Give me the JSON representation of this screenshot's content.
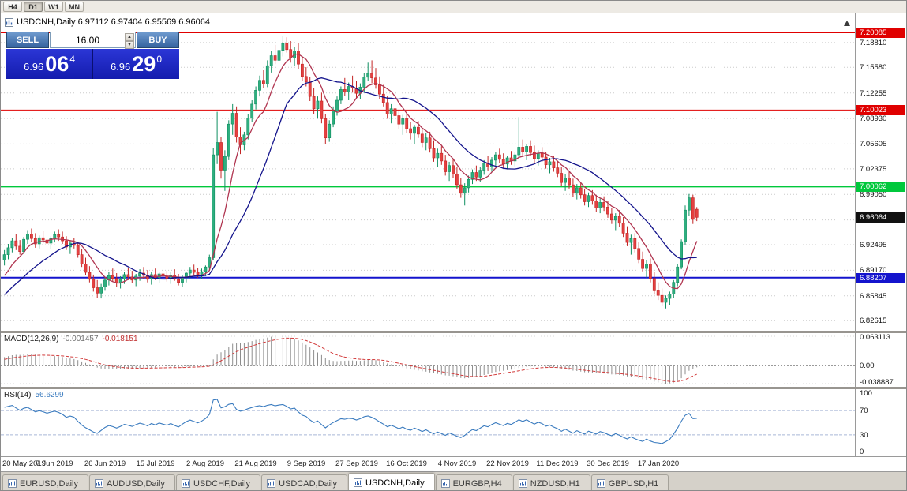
{
  "toolbar": {
    "timeframes": [
      {
        "label": "H4",
        "active": false
      },
      {
        "label": "D1",
        "active": true
      },
      {
        "label": "W1",
        "active": false
      },
      {
        "label": "MN",
        "active": false
      }
    ]
  },
  "chart_header": {
    "title": "USDCNH,Daily 6.97112 6.97404 6.95569 6.96064"
  },
  "trade_panel": {
    "sell_label": "SELL",
    "buy_label": "BUY",
    "volume": "16.00",
    "sell_price": {
      "base": "6.96",
      "pips": "06",
      "point": "4"
    },
    "buy_price": {
      "base": "6.96",
      "pips": "29",
      "point": "0"
    }
  },
  "chart_data": {
    "type": "candlestick",
    "symbol": "USDCNH",
    "period": "Daily",
    "ohlc": {
      "open": "6.97112",
      "high": "6.97404",
      "low": "6.95569",
      "close": "6.96064"
    },
    "current_price": "6.96064",
    "y_axis": {
      "min": 6.813,
      "max": 7.226,
      "ticks": [
        "7.18810",
        "7.15580",
        "7.12255",
        "7.08930",
        "7.05605",
        "7.02375",
        "6.99050",
        "6.95725",
        "6.92495",
        "6.89170",
        "6.85845",
        "6.82615"
      ]
    },
    "x_axis": {
      "labels": [
        "20 May 2019",
        "7 Jun 2019",
        "26 Jun 2019",
        "15 Jul 2019",
        "2 Aug 2019",
        "21 Aug 2019",
        "9 Sep 2019",
        "27 Sep 2019",
        "16 Oct 2019",
        "4 Nov 2019",
        "22 Nov 2019",
        "11 Dec 2019",
        "30 Dec 2019",
        "17 Jan 2020"
      ],
      "label_bar_indexes": [
        0,
        13,
        26,
        39,
        52,
        65,
        78,
        91,
        104,
        117,
        130,
        143,
        156,
        169
      ]
    },
    "hlines": [
      {
        "price": 7.20085,
        "label": "7.20085",
        "color": "#e00000",
        "width": 1
      },
      {
        "price": 7.10023,
        "label": "7.10023",
        "color": "#e00000",
        "width": 1
      },
      {
        "price": 7.00062,
        "label": "7.00062",
        "color": "#00c83c",
        "width": 2
      },
      {
        "price": 6.88207,
        "label": "6.88207",
        "color": "#1414cd",
        "width": 2
      }
    ],
    "colors": {
      "bull": "#2fae7f",
      "bull_border": "#0f8f61",
      "bear": "#e44141",
      "bear_border": "#c32424",
      "grid": "#cccccc",
      "current_badge": "#111111"
    },
    "moving_averages": [
      {
        "period": 8,
        "color": "#b03550"
      },
      {
        "period": 20,
        "color": "#14148c"
      }
    ],
    "seed_closes": [
      6.82,
      6.829,
      6.824,
      6.835,
      6.83,
      6.842,
      6.837,
      6.85,
      6.844,
      6.856,
      6.85,
      6.864,
      6.858,
      6.872,
      6.866,
      6.88,
      6.874,
      6.89,
      6.885,
      6.9
    ],
    "candles": [
      [
        6.905,
        6.918,
        6.898,
        6.912
      ],
      [
        6.912,
        6.926,
        6.906,
        6.921
      ],
      [
        6.921,
        6.934,
        6.915,
        6.93
      ],
      [
        6.93,
        6.939,
        6.918,
        6.923
      ],
      [
        6.923,
        6.931,
        6.912,
        6.916
      ],
      [
        6.916,
        6.935,
        6.913,
        6.932
      ],
      [
        6.932,
        6.944,
        6.926,
        6.939
      ],
      [
        6.939,
        6.946,
        6.929,
        6.933
      ],
      [
        6.933,
        6.94,
        6.921,
        6.926
      ],
      [
        6.926,
        6.937,
        6.92,
        6.934
      ],
      [
        6.934,
        6.943,
        6.927,
        6.931
      ],
      [
        6.931,
        6.938,
        6.922,
        6.927
      ],
      [
        6.927,
        6.936,
        6.919,
        6.933
      ],
      [
        6.933,
        6.942,
        6.928,
        6.938
      ],
      [
        6.938,
        6.945,
        6.93,
        6.935
      ],
      [
        6.935,
        6.942,
        6.926,
        6.93
      ],
      [
        6.93,
        6.936,
        6.918,
        6.922
      ],
      [
        6.922,
        6.93,
        6.913,
        6.927
      ],
      [
        6.927,
        6.934,
        6.92,
        6.924
      ],
      [
        6.924,
        6.929,
        6.908,
        6.912
      ],
      [
        6.912,
        6.919,
        6.896,
        6.9
      ],
      [
        6.9,
        6.908,
        6.885,
        6.889
      ],
      [
        6.889,
        6.897,
        6.876,
        6.88
      ],
      [
        6.88,
        6.886,
        6.864,
        6.869
      ],
      [
        6.869,
        6.879,
        6.856,
        6.862
      ],
      [
        6.862,
        6.874,
        6.855,
        6.87
      ],
      [
        6.87,
        6.883,
        6.865,
        6.879
      ],
      [
        6.879,
        6.89,
        6.872,
        6.885
      ],
      [
        6.885,
        6.894,
        6.877,
        6.881
      ],
      [
        6.881,
        6.888,
        6.87,
        6.875
      ],
      [
        6.875,
        6.884,
        6.868,
        6.88
      ],
      [
        6.88,
        6.89,
        6.874,
        6.886
      ],
      [
        6.886,
        6.895,
        6.879,
        6.883
      ],
      [
        6.883,
        6.891,
        6.875,
        6.879
      ],
      [
        6.879,
        6.887,
        6.871,
        6.884
      ],
      [
        6.884,
        6.893,
        6.878,
        6.888
      ],
      [
        6.888,
        6.896,
        6.88,
        6.885
      ],
      [
        6.885,
        6.892,
        6.876,
        6.88
      ],
      [
        6.88,
        6.889,
        6.873,
        6.886
      ],
      [
        6.886,
        6.894,
        6.879,
        6.882
      ],
      [
        6.882,
        6.89,
        6.875,
        6.887
      ],
      [
        6.887,
        6.895,
        6.88,
        6.884
      ],
      [
        6.884,
        6.891,
        6.877,
        6.881
      ],
      [
        6.881,
        6.889,
        6.874,
        6.885
      ],
      [
        6.885,
        6.893,
        6.878,
        6.88
      ],
      [
        6.88,
        6.887,
        6.872,
        6.876
      ],
      [
        6.876,
        6.885,
        6.87,
        6.882
      ],
      [
        6.882,
        6.89,
        6.876,
        6.888
      ],
      [
        6.888,
        6.896,
        6.881,
        6.892
      ],
      [
        6.892,
        6.899,
        6.885,
        6.889
      ],
      [
        6.889,
        6.895,
        6.882,
        6.886
      ],
      [
        6.886,
        6.894,
        6.88,
        6.89
      ],
      [
        6.89,
        6.898,
        6.884,
        6.896
      ],
      [
        6.896,
        6.912,
        6.891,
        6.908
      ],
      [
        6.908,
        7.051,
        6.905,
        7.042
      ],
      [
        7.042,
        7.098,
        7.03,
        7.058
      ],
      [
        7.058,
        7.065,
        7.011,
        7.022
      ],
      [
        7.022,
        7.048,
        6.995,
        7.04
      ],
      [
        7.04,
        7.087,
        7.035,
        7.082
      ],
      [
        7.082,
        7.108,
        7.068,
        7.096
      ],
      [
        7.096,
        7.105,
        7.058,
        7.065
      ],
      [
        7.065,
        7.078,
        7.043,
        7.055
      ],
      [
        7.055,
        7.072,
        7.048,
        7.068
      ],
      [
        7.068,
        7.095,
        7.062,
        7.09
      ],
      [
        7.09,
        7.113,
        7.085,
        7.108
      ],
      [
        7.108,
        7.131,
        7.101,
        7.126
      ],
      [
        7.126,
        7.145,
        7.118,
        7.139
      ],
      [
        7.139,
        7.152,
        7.129,
        7.134
      ],
      [
        7.134,
        7.165,
        7.13,
        7.158
      ],
      [
        7.158,
        7.177,
        7.149,
        7.171
      ],
      [
        7.171,
        7.185,
        7.16,
        7.165
      ],
      [
        7.165,
        7.182,
        7.156,
        7.178
      ],
      [
        7.178,
        7.1965,
        7.17,
        7.187
      ],
      [
        7.187,
        7.195,
        7.175,
        7.179
      ],
      [
        7.179,
        7.19,
        7.162,
        7.168
      ],
      [
        7.168,
        7.182,
        7.158,
        7.177
      ],
      [
        7.177,
        7.188,
        7.154,
        7.16
      ],
      [
        7.16,
        7.17,
        7.138,
        7.144
      ],
      [
        7.144,
        7.156,
        7.131,
        7.137
      ],
      [
        7.137,
        7.143,
        7.112,
        7.118
      ],
      [
        7.118,
        7.129,
        7.095,
        7.102
      ],
      [
        7.102,
        7.118,
        7.089,
        7.112
      ],
      [
        7.112,
        7.123,
        7.083,
        7.089
      ],
      [
        7.089,
        7.095,
        7.056,
        7.064
      ],
      [
        7.064,
        7.087,
        7.059,
        7.082
      ],
      [
        7.082,
        7.105,
        7.078,
        7.099
      ],
      [
        7.099,
        7.118,
        7.093,
        7.113
      ],
      [
        7.113,
        7.131,
        7.108,
        7.127
      ],
      [
        7.127,
        7.142,
        7.119,
        7.124
      ],
      [
        7.124,
        7.136,
        7.113,
        7.131
      ],
      [
        7.131,
        7.145,
        7.123,
        7.129
      ],
      [
        7.129,
        7.138,
        7.116,
        7.122
      ],
      [
        7.122,
        7.135,
        7.115,
        7.13
      ],
      [
        7.13,
        7.148,
        7.124,
        7.143
      ],
      [
        7.143,
        7.162,
        7.138,
        7.148
      ],
      [
        7.148,
        7.165,
        7.135,
        7.142
      ],
      [
        7.142,
        7.155,
        7.128,
        7.133
      ],
      [
        7.133,
        7.144,
        7.115,
        7.121
      ],
      [
        7.121,
        7.133,
        7.105,
        7.11
      ],
      [
        7.11,
        7.119,
        7.089,
        7.095
      ],
      [
        7.095,
        7.108,
        7.083,
        7.102
      ],
      [
        7.102,
        7.112,
        7.087,
        7.093
      ],
      [
        7.093,
        7.101,
        7.076,
        7.082
      ],
      [
        7.082,
        7.094,
        7.068,
        7.089
      ],
      [
        7.089,
        7.097,
        7.07,
        7.076
      ],
      [
        7.076,
        7.085,
        7.062,
        7.07
      ],
      [
        7.07,
        7.081,
        7.056,
        7.078
      ],
      [
        7.078,
        7.086,
        7.064,
        7.069
      ],
      [
        7.069,
        7.077,
        7.052,
        7.058
      ],
      [
        7.058,
        7.07,
        7.048,
        7.064
      ],
      [
        7.064,
        7.072,
        7.045,
        7.05
      ],
      [
        7.05,
        7.061,
        7.033,
        7.038
      ],
      [
        7.038,
        7.05,
        7.026,
        7.044
      ],
      [
        7.044,
        7.053,
        7.029,
        7.034
      ],
      [
        7.034,
        7.042,
        7.015,
        7.02
      ],
      [
        7.02,
        7.033,
        7.008,
        7.028
      ],
      [
        7.028,
        7.036,
        7.012,
        7.017
      ],
      [
        7.017,
        7.026,
        6.998,
        7.003
      ],
      [
        7.003,
        7.012,
        6.986,
        6.992
      ],
      [
        6.992,
        7.005,
        6.976,
        6.999
      ],
      [
        6.999,
        7.015,
        6.993,
        7.01
      ],
      [
        7.01,
        7.023,
        7.004,
        7.019
      ],
      [
        7.019,
        7.028,
        7.008,
        7.013
      ],
      [
        7.013,
        7.026,
        7.007,
        7.022
      ],
      [
        7.022,
        7.035,
        7.016,
        7.031
      ],
      [
        7.031,
        7.04,
        7.021,
        7.026
      ],
      [
        7.026,
        7.039,
        7.019,
        7.035
      ],
      [
        7.035,
        7.046,
        7.028,
        7.042
      ],
      [
        7.042,
        7.05,
        7.031,
        7.036
      ],
      [
        7.036,
        7.044,
        7.025,
        7.03
      ],
      [
        7.03,
        7.041,
        7.023,
        7.038
      ],
      [
        7.038,
        7.047,
        7.029,
        7.034
      ],
      [
        7.034,
        7.045,
        7.027,
        7.042
      ],
      [
        7.042,
        7.091,
        7.038,
        7.052
      ],
      [
        7.052,
        7.062,
        7.041,
        7.046
      ],
      [
        7.046,
        7.056,
        7.035,
        7.053
      ],
      [
        7.053,
        7.061,
        7.04,
        7.045
      ],
      [
        7.045,
        7.054,
        7.031,
        7.037
      ],
      [
        7.037,
        7.048,
        7.028,
        7.044
      ],
      [
        7.044,
        7.052,
        7.033,
        7.039
      ],
      [
        7.039,
        7.046,
        7.024,
        7.029
      ],
      [
        7.029,
        7.038,
        7.018,
        7.033
      ],
      [
        7.033,
        7.04,
        7.02,
        7.025
      ],
      [
        7.025,
        7.034,
        7.013,
        7.018
      ],
      [
        7.018,
        7.026,
        7.001,
        7.006
      ],
      [
        7.006,
        7.017,
        6.995,
        7.012
      ],
      [
        7.012,
        7.02,
        6.998,
        7.003
      ],
      [
        7.003,
        7.011,
        6.987,
        6.992
      ],
      [
        6.992,
        7.004,
        6.984,
        6.999
      ],
      [
        6.999,
        7.006,
        6.985,
        6.99
      ],
      [
        6.99,
        6.998,
        6.976,
        6.981
      ],
      [
        6.981,
        6.993,
        6.974,
        6.989
      ],
      [
        6.989,
        6.996,
        6.977,
        6.982
      ],
      [
        6.982,
        6.99,
        6.968,
        6.973
      ],
      [
        6.973,
        6.985,
        6.966,
        6.98
      ],
      [
        6.98,
        6.988,
        6.969,
        6.974
      ],
      [
        6.974,
        6.982,
        6.96,
        6.965
      ],
      [
        6.965,
        6.973,
        6.952,
        6.957
      ],
      [
        6.957,
        6.966,
        6.944,
        6.962
      ],
      [
        6.962,
        6.97,
        6.948,
        6.953
      ],
      [
        6.953,
        6.961,
        6.935,
        6.94
      ],
      [
        6.94,
        6.949,
        6.923,
        6.928
      ],
      [
        6.928,
        6.938,
        6.912,
        6.933
      ],
      [
        6.933,
        6.94,
        6.915,
        6.92
      ],
      [
        6.92,
        6.928,
        6.901,
        6.906
      ],
      [
        6.906,
        6.916,
        6.889,
        6.894
      ],
      [
        6.894,
        6.905,
        6.882,
        6.9
      ],
      [
        6.9,
        6.907,
        6.876,
        6.881
      ],
      [
        6.881,
        6.889,
        6.86,
        6.865
      ],
      [
        6.865,
        6.876,
        6.853,
        6.859
      ],
      [
        6.859,
        6.868,
        6.845,
        6.85
      ],
      [
        6.85,
        6.859,
        6.842,
        6.855
      ],
      [
        6.855,
        6.864,
        6.846,
        6.861
      ],
      [
        6.861,
        6.879,
        6.856,
        6.876
      ],
      [
        6.876,
        6.9,
        6.871,
        6.896
      ],
      [
        6.896,
        6.932,
        6.893,
        6.929
      ],
      [
        6.929,
        6.976,
        6.925,
        6.97
      ],
      [
        6.97,
        6.991,
        6.962,
        6.986
      ],
      [
        6.986,
        6.99,
        6.952,
        6.958
      ],
      [
        6.9711,
        6.974,
        6.9557,
        6.9606
      ]
    ],
    "indicators": {
      "macd": {
        "label": "MACD(12,26,9)",
        "value_main": "-0.001457",
        "value_signal": "-0.018151",
        "fast": 12,
        "slow": 26,
        "signal": 9,
        "axis_max": "0.063113",
        "axis_zero": "0.00",
        "axis_min": "-0.038887",
        "hist_color": "#8d8d8d",
        "signal_color": "#d23b3b"
      },
      "rsi": {
        "label": "RSI(14)",
        "value": "56.6299",
        "period": 14,
        "levels": [
          70,
          30
        ],
        "axis": [
          "100",
          "70",
          "30",
          "0"
        ],
        "line_color": "#3a7bbf",
        "level_color": "#a9b8d8"
      }
    }
  },
  "tabs": {
    "items": [
      {
        "label": "EURUSD,Daily",
        "active": false
      },
      {
        "label": "AUDUSD,Daily",
        "active": false
      },
      {
        "label": "USDCHF,Daily",
        "active": false
      },
      {
        "label": "USDCAD,Daily",
        "active": false
      },
      {
        "label": "USDCNH,Daily",
        "active": true
      },
      {
        "label": "EURGBP,H4",
        "active": false
      },
      {
        "label": "NZDUSD,H1",
        "active": false
      },
      {
        "label": "GBPUSD,H1",
        "active": false
      }
    ]
  }
}
